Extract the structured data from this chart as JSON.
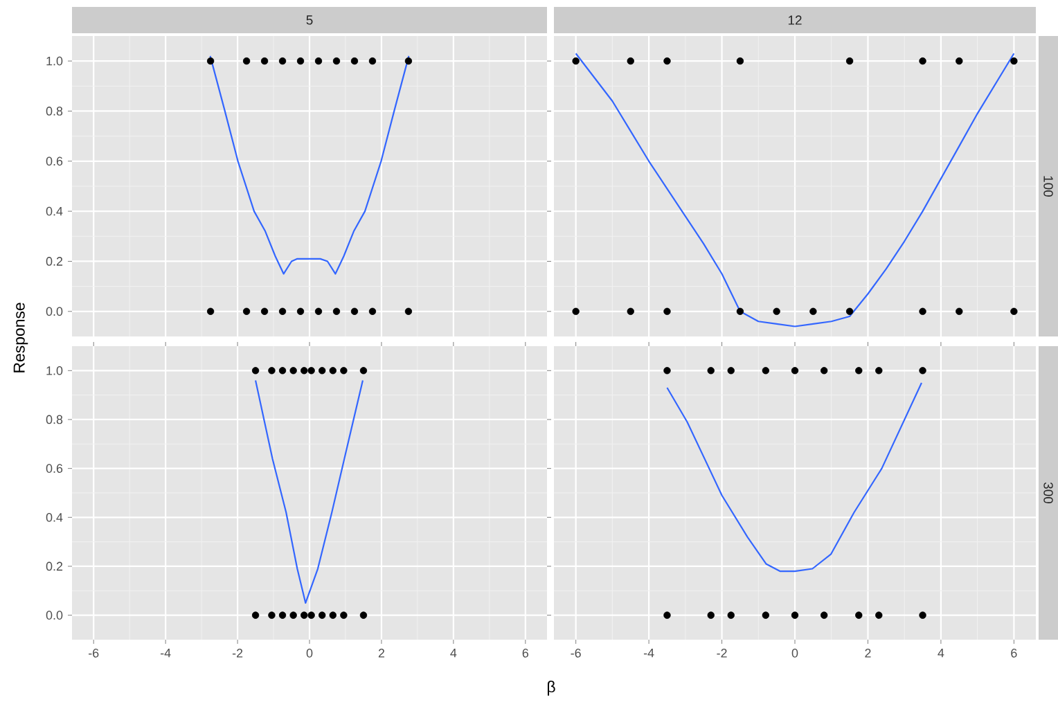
{
  "chart_data": [
    {
      "type": "scatter",
      "title": "5",
      "ylabel": "Response",
      "xlim": [
        -6.6,
        6.6
      ],
      "ylim": [
        -0.1,
        1.1
      ],
      "xticks": [
        -6,
        -4,
        -2,
        0,
        2,
        4,
        6
      ],
      "yticks": [
        {
          "value": 0,
          "label": "0.0"
        },
        {
          "value": 0.2,
          "label": "0.2"
        },
        {
          "value": 0.4,
          "label": "0.4"
        },
        {
          "value": 0.6,
          "label": "0.6"
        },
        {
          "value": 0.8,
          "label": "0.8"
        },
        {
          "value": 1,
          "label": "1.0"
        }
      ],
      "grid": true,
      "tick_labels": "y",
      "series": [
        {
          "marker": "circle",
          "color": "#000000",
          "x": [
            -2.75,
            -1.75,
            -1.25,
            -0.75,
            -0.25,
            0.25,
            0.75,
            1.25,
            1.75,
            2.75,
            -2.75,
            -1.75,
            -1.25,
            -0.75,
            -0.25,
            0.25,
            0.75,
            1.25,
            1.75,
            2.75
          ],
          "values": [
            1,
            1,
            1,
            1,
            1,
            1,
            1,
            1,
            1,
            1,
            0,
            0,
            0,
            0,
            0,
            0,
            0,
            0,
            0,
            0
          ]
        },
        {
          "type": "line",
          "color": "#3366ff",
          "x": [
            -2.76,
            -2.37,
            -1.99,
            -1.54,
            -1.23,
            -0.95,
            -0.72,
            -0.5,
            -0.34,
            -0.02,
            0.3,
            0.5,
            0.72,
            0.95,
            1.23,
            1.54,
            1.99,
            2.37,
            2.76
          ],
          "values": [
            1.02,
            0.81,
            0.6,
            0.4,
            0.32,
            0.22,
            0.15,
            0.2,
            0.21,
            0.21,
            0.21,
            0.2,
            0.15,
            0.22,
            0.32,
            0.4,
            0.6,
            0.81,
            1.02
          ]
        }
      ]
    },
    {
      "type": "scatter",
      "title": "12",
      "y2label": "100",
      "xlim": [
        -6.6,
        6.6
      ],
      "ylim": [
        -0.1,
        1.1
      ],
      "xticks": [
        -6,
        -4,
        -2,
        0,
        2,
        4,
        6
      ],
      "yticks": [
        0,
        0.2,
        0.4,
        0.6,
        0.8,
        1
      ],
      "grid": true,
      "tick_labels": false,
      "series": [
        {
          "marker": "circle",
          "color": "#000000",
          "x": [
            -6,
            -4.5,
            -3.5,
            -1.5,
            1.5,
            3.5,
            4.5,
            6,
            -6,
            -4.5,
            -3.5,
            -1.5,
            -0.5,
            0.5,
            1.5,
            3.5,
            4.5,
            6
          ],
          "values": [
            1,
            1,
            1,
            1,
            1,
            1,
            1,
            1,
            0,
            0,
            0,
            0,
            0,
            0,
            0,
            0,
            0,
            0
          ]
        },
        {
          "type": "line",
          "color": "#3366ff",
          "x": [
            -6,
            -5,
            -4.5,
            -4,
            -3.5,
            -3,
            -2.5,
            -2,
            -1.5,
            -1,
            -0.5,
            0,
            0.5,
            1,
            1.5,
            2,
            2.5,
            3,
            3.5,
            4,
            4.5,
            5,
            6
          ],
          "values": [
            1.03,
            0.84,
            0.72,
            0.6,
            0.49,
            0.38,
            0.27,
            0.15,
            0.0,
            -0.04,
            -0.05,
            -0.06,
            -0.05,
            -0.04,
            -0.02,
            0.07,
            0.17,
            0.28,
            0.4,
            0.53,
            0.66,
            0.79,
            1.03
          ]
        }
      ]
    },
    {
      "type": "scatter",
      "xlabel": "β",
      "xlim": [
        -6.6,
        6.6
      ],
      "ylim": [
        -0.1,
        1.1
      ],
      "xticks": [
        -6,
        -4,
        -2,
        0,
        2,
        4,
        6
      ],
      "yticks": [
        {
          "value": 0,
          "label": "0.0"
        },
        {
          "value": 0.2,
          "label": "0.2"
        },
        {
          "value": 0.4,
          "label": "0.4"
        },
        {
          "value": 0.6,
          "label": "0.6"
        },
        {
          "value": 0.8,
          "label": "0.8"
        },
        {
          "value": 1,
          "label": "1.0"
        }
      ],
      "grid": true,
      "series": [
        {
          "marker": "circle",
          "color": "#000000",
          "x": [
            -1.5,
            -1.05,
            -0.75,
            -0.45,
            -0.15,
            0.05,
            0.35,
            0.65,
            0.95,
            1.5,
            -1.5,
            -1.05,
            -0.75,
            -0.45,
            -0.15,
            0.05,
            0.35,
            0.65,
            0.95,
            1.5
          ],
          "values": [
            1,
            1,
            1,
            1,
            1,
            1,
            1,
            1,
            1,
            1,
            0,
            0,
            0,
            0,
            0,
            0,
            0,
            0,
            0,
            0
          ]
        },
        {
          "type": "line",
          "color": "#3366ff",
          "x": [
            -1.5,
            -1.03,
            -0.65,
            -0.34,
            -0.11,
            0.23,
            0.62,
            1.0,
            1.48
          ],
          "values": [
            0.96,
            0.64,
            0.42,
            0.19,
            0.05,
            0.19,
            0.42,
            0.66,
            0.96
          ]
        }
      ]
    },
    {
      "type": "scatter",
      "y2label": "300",
      "xlim": [
        -6.6,
        6.6
      ],
      "ylim": [
        -0.1,
        1.1
      ],
      "xticks": [
        -6,
        -4,
        -2,
        0,
        2,
        4,
        6
      ],
      "yticks": [
        0,
        0.2,
        0.4,
        0.6,
        0.8,
        1
      ],
      "grid": true,
      "tick_labels": "x",
      "series": [
        {
          "marker": "circle",
          "color": "#000000",
          "x": [
            -3.5,
            -2.3,
            -1.75,
            -0.8,
            0,
            0.8,
            1.75,
            2.3,
            3.5,
            -3.5,
            -2.3,
            -1.75,
            -0.8,
            0,
            0.8,
            1.75,
            2.3,
            3.5
          ],
          "values": [
            1,
            1,
            1,
            1,
            1,
            1,
            1,
            1,
            1,
            0,
            0,
            0,
            0,
            0,
            0,
            0,
            0,
            0
          ]
        },
        {
          "type": "line",
          "color": "#3366ff",
          "x": [
            -3.5,
            -2.95,
            -2.0,
            -1.3,
            -0.79,
            -0.41,
            0,
            0.48,
            0.99,
            1.62,
            2.38,
            3.47
          ],
          "values": [
            0.93,
            0.79,
            0.49,
            0.32,
            0.21,
            0.18,
            0.18,
            0.19,
            0.25,
            0.42,
            0.6,
            0.95
          ]
        }
      ]
    }
  ]
}
